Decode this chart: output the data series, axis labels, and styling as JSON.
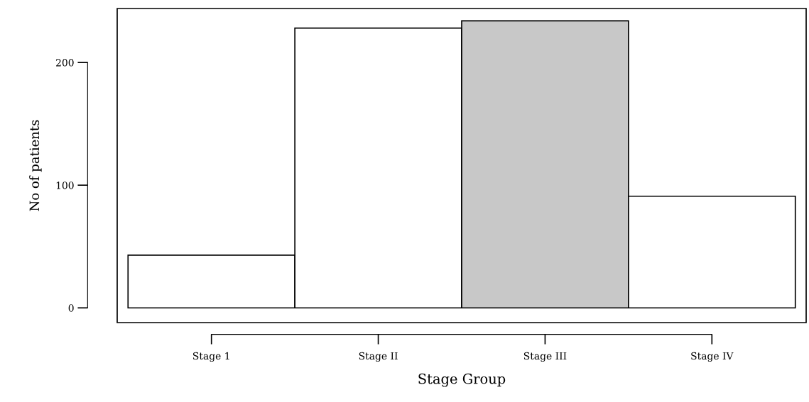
{
  "chart_data": {
    "type": "bar",
    "xlabel": "Stage Group",
    "ylabel": "No of patients",
    "categories": [
      "Stage 1",
      "Stage II",
      "Stage III",
      "Stage IV"
    ],
    "values": [
      43,
      228,
      234,
      91
    ],
    "colors": [
      "#ffffff",
      "#ffffff",
      "#c8c8c8",
      "#ffffff"
    ],
    "ylim": [
      -12,
      244
    ],
    "yticks": [
      0,
      100,
      200
    ],
    "grid": false
  }
}
